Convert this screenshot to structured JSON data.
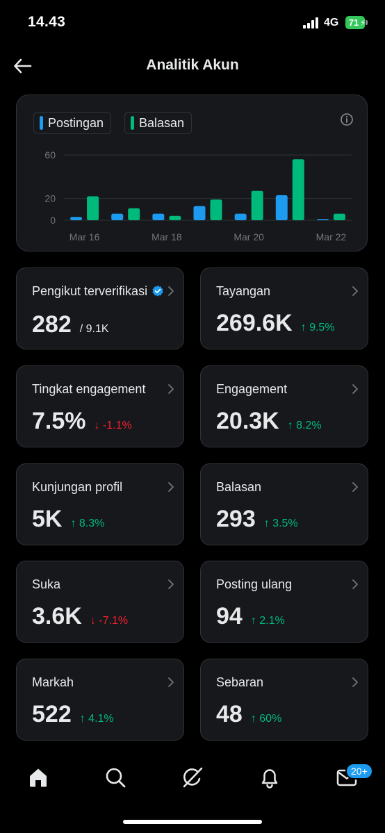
{
  "status_bar": {
    "time": "14.43",
    "network": "4G",
    "battery": "71"
  },
  "header": {
    "title": "Analitik Akun",
    "back_icon": "arrow-left-icon"
  },
  "chart": {
    "legend": [
      {
        "name": "Postingan",
        "color": "#1d9bf0"
      },
      {
        "name": "Balasan",
        "color": "#00ba7c"
      }
    ],
    "info_icon": "info-circle-icon"
  },
  "chart_data": {
    "type": "bar",
    "categories": [
      "Mar 16",
      "Mar 17",
      "Mar 18",
      "Mar 19",
      "Mar 20",
      "Mar 21",
      "Mar 22"
    ],
    "x_tick_labels": [
      "Mar 16",
      "Mar 18",
      "Mar 20",
      "Mar 22"
    ],
    "y_tick_labels": [
      "0",
      "20",
      "60"
    ],
    "ylim": [
      0,
      60
    ],
    "grid": true,
    "legend_position": "top-left",
    "series": [
      {
        "name": "Postingan",
        "color": "#1d9bf0",
        "values": [
          3,
          6,
          6,
          13,
          6,
          23,
          1
        ]
      },
      {
        "name": "Balasan",
        "color": "#00ba7c",
        "values": [
          22,
          11,
          4,
          19,
          27,
          56,
          6
        ]
      }
    ]
  },
  "metrics": [
    {
      "label": "Pengikut terverifikasi",
      "value": "282",
      "total": "/ 9.1K",
      "verified_icon": "verified-badge-icon"
    },
    {
      "label": "Tayangan",
      "value": "269.6K",
      "change": "↑ 9.5%",
      "direction": "up"
    },
    {
      "label": "Tingkat engagement",
      "value": "7.5%",
      "change": "↓ -1.1%",
      "direction": "down"
    },
    {
      "label": "Engagement",
      "value": "20.3K",
      "change": "↑ 8.2%",
      "direction": "up"
    },
    {
      "label": "Kunjungan profil",
      "value": "5K",
      "change": "↑ 8.3%",
      "direction": "up"
    },
    {
      "label": "Balasan",
      "value": "293",
      "change": "↑ 3.5%",
      "direction": "up"
    },
    {
      "label": "Suka",
      "value": "3.6K",
      "change": "↓ -7.1%",
      "direction": "down"
    },
    {
      "label": "Posting ulang",
      "value": "94",
      "change": "↑ 2.1%",
      "direction": "up"
    },
    {
      "label": "Markah",
      "value": "522",
      "change": "↑ 4.1%",
      "direction": "up"
    },
    {
      "label": "Sebaran",
      "value": "48",
      "change": "↑ 60%",
      "direction": "up"
    }
  ],
  "bottom_nav": {
    "items": [
      "home-icon",
      "search-icon",
      "grok-icon",
      "bell-icon",
      "mail-icon"
    ],
    "badge": "20+"
  },
  "colors": {
    "background": "#000000",
    "card": "#16181c",
    "border": "#2f3336",
    "accent_blue": "#1d9bf0",
    "positive": "#00ba7c",
    "negative": "#f4212e"
  }
}
